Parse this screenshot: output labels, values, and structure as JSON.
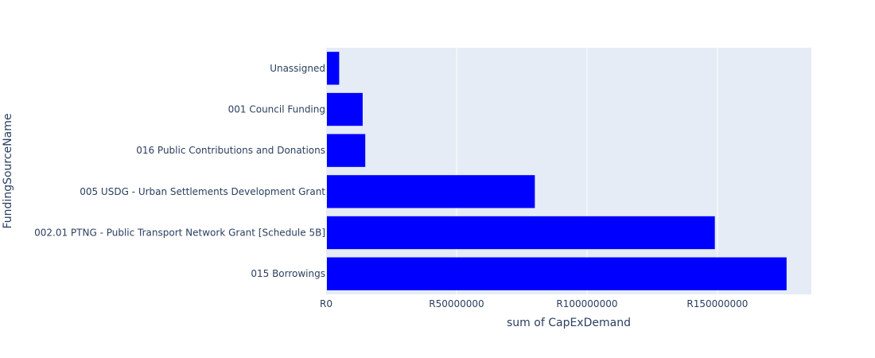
{
  "chart_data": {
    "type": "bar",
    "orientation": "horizontal",
    "xlabel": "sum of CapExDemand",
    "ylabel": "FundingSourceName",
    "xlim": [
      0,
      186000000
    ],
    "x_ticks": [
      {
        "value": 0,
        "label": "R0"
      },
      {
        "value": 50000000,
        "label": "R50000000"
      },
      {
        "value": 100000000,
        "label": "R100000000"
      },
      {
        "value": 150000000,
        "label": "R150000000"
      }
    ],
    "categories": [
      "Unassigned",
      "001 Council Funding",
      "016 Public Contributions and Donations",
      "005 USDG - Urban Settlements Development Grant",
      "002.01 PTNG - Public Transport Network Grant [Schedule 5B]",
      "015 Borrowings"
    ],
    "values": [
      5000000,
      14000000,
      15000000,
      80000000,
      149000000,
      176500000
    ],
    "bar_color": "#0000ff",
    "plot_background": "#e5ecf6",
    "grid": true,
    "gridline_color": "#ffffff",
    "legend": false
  }
}
